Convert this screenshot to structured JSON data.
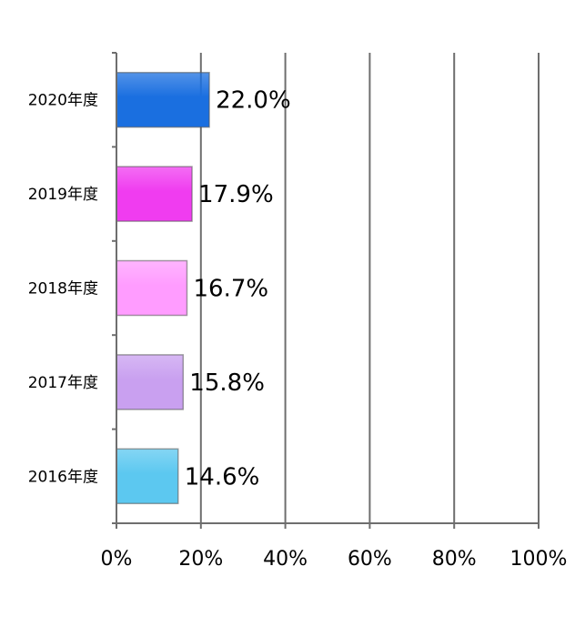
{
  "chart_data": {
    "type": "bar",
    "orientation": "horizontal",
    "categories": [
      "2020年度",
      "2019年度",
      "2018年度",
      "2017年度",
      "2016年度"
    ],
    "values": [
      22.0,
      17.9,
      16.7,
      15.8,
      14.6
    ],
    "value_labels": [
      "22.0%",
      "17.9%",
      "16.7%",
      "15.8%",
      "14.6%"
    ],
    "bar_colors": [
      "#1a6fe0",
      "#f03cf0",
      "#ff9cff",
      "#c9a0f0",
      "#5cc8f0"
    ],
    "xlim": [
      0,
      100
    ],
    "x_ticks": [
      0,
      20,
      40,
      60,
      80,
      100
    ],
    "x_tick_labels": [
      "0%",
      "20%",
      "40%",
      "60%",
      "80%",
      "100%"
    ],
    "grid": true,
    "title": "",
    "xlabel": "",
    "ylabel": ""
  }
}
